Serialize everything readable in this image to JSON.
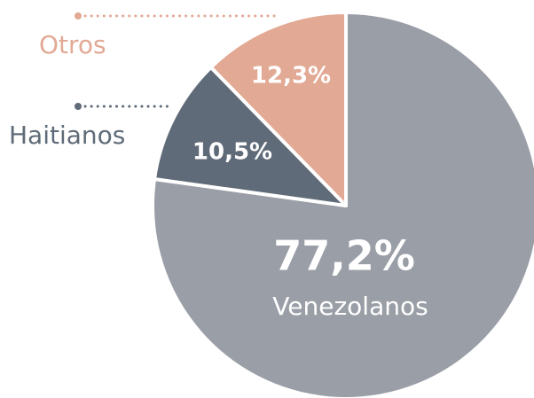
{
  "chart_data": {
    "type": "pie",
    "categories": [
      "Venezolanos",
      "Haitianos",
      "Otros"
    ],
    "values": [
      77.2,
      10.5,
      12.3
    ],
    "value_labels": [
      "77,2%",
      "10,5%",
      "12,3%"
    ],
    "colors": [
      "#9a9ea6",
      "#5f6b78",
      "#e2a994"
    ]
  }
}
